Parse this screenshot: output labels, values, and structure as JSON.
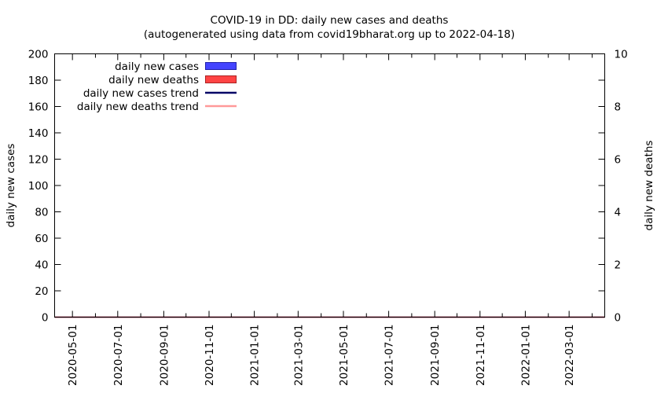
{
  "chart_data": {
    "type": "bar",
    "title": "COVID-19 in DD: daily new cases and deaths",
    "subtitle": "(autogenerated using data from covid19bharat.org up to 2022-04-18)",
    "ylabel": "daily new cases",
    "y2label": "daily new deaths",
    "ylim": [
      0,
      200
    ],
    "y2lim": [
      0,
      10
    ],
    "y_ticks": [
      "0",
      "20",
      "40",
      "60",
      "80",
      "100",
      "120",
      "140",
      "160",
      "180",
      "200"
    ],
    "y2_ticks": [
      "0",
      "2",
      "4",
      "6",
      "8",
      "10"
    ],
    "x_range": [
      "2020-04-07",
      "2022-04-18"
    ],
    "x_ticks": [
      "2020-05-01",
      "2020-07-01",
      "2020-09-01",
      "2020-11-01",
      "2021-01-01",
      "2021-03-01",
      "2021-05-01",
      "2021-07-01",
      "2021-09-01",
      "2021-11-01",
      "2022-01-01",
      "2022-03-01"
    ],
    "grid": false,
    "legend_position": "top-left",
    "legend": [
      {
        "label": "daily new cases",
        "kind": "bar",
        "color": "#4444ff"
      },
      {
        "label": "daily new deaths",
        "kind": "bar",
        "color": "#ff4444"
      },
      {
        "label": "daily new cases trend",
        "kind": "line",
        "color": "#000066"
      },
      {
        "label": "daily new deaths trend",
        "kind": "line",
        "color": "#ff9999"
      }
    ],
    "series": [
      {
        "name": "daily new cases",
        "axis": "left",
        "values": [
          0
        ]
      },
      {
        "name": "daily new deaths",
        "axis": "right",
        "values": [
          0
        ]
      },
      {
        "name": "daily new cases trend",
        "axis": "left",
        "values": [
          0
        ]
      },
      {
        "name": "daily new deaths trend",
        "axis": "right",
        "values": [
          0
        ]
      }
    ]
  }
}
